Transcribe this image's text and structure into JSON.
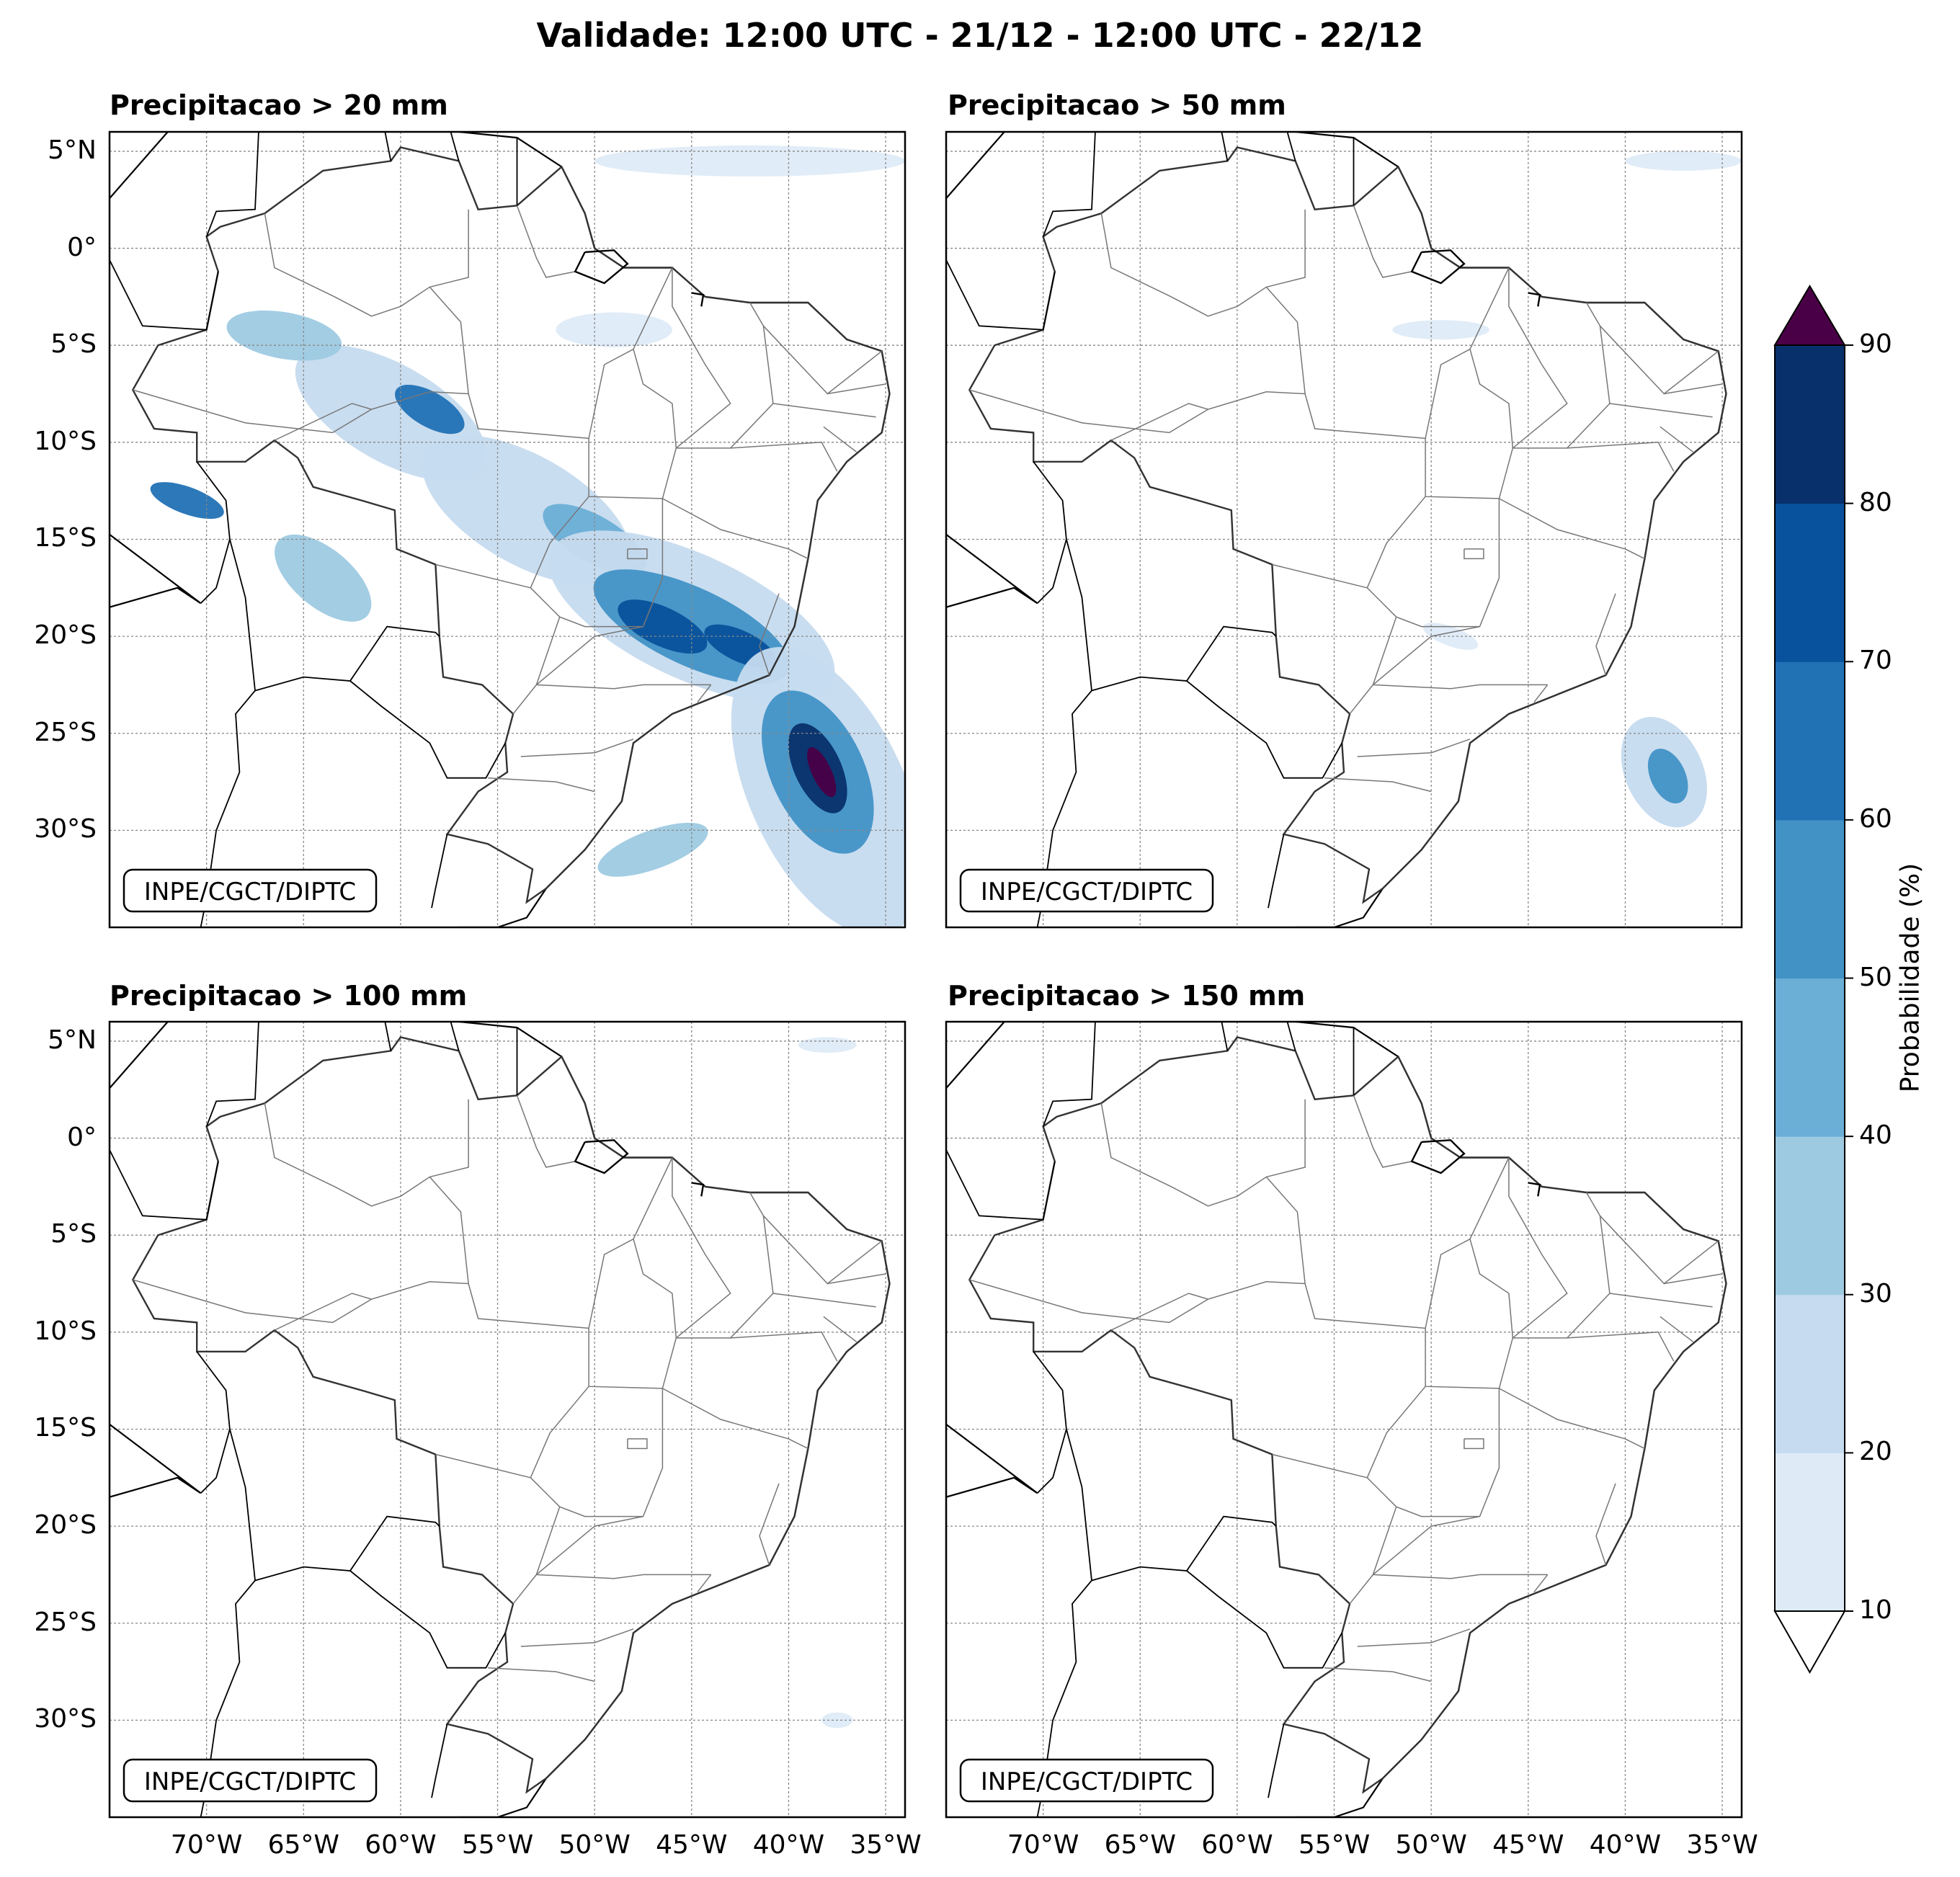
{
  "title": "Validade: 12:00 UTC - 21/12 - 12:00 UTC - 22/12",
  "credit": "INPE/CGCT/DIPTC",
  "panels": [
    {
      "title": "Precipitacao > 20 mm"
    },
    {
      "title": "Precipitacao > 50 mm"
    },
    {
      "title": "Precipitacao > 100 mm"
    },
    {
      "title": "Precipitacao > 150 mm"
    }
  ],
  "axes": {
    "lat_ticks": [
      "5°N",
      "0°",
      "5°S",
      "10°S",
      "15°S",
      "20°S",
      "25°S",
      "30°S"
    ],
    "lon_ticks": [
      "70°W",
      "65°W",
      "60°W",
      "55°W",
      "50°W",
      "45°W",
      "40°W",
      "35°W"
    ],
    "lat_range": [
      -35,
      6
    ],
    "lon_range": [
      -75,
      -34
    ]
  },
  "colorbar": {
    "label": "Probabilidade (%)",
    "ticks": [
      "10",
      "20",
      "30",
      "40",
      "50",
      "60",
      "70",
      "80",
      "90"
    ],
    "colors": [
      "#deebf7",
      "#c6dbef",
      "#9ecae1",
      "#6baed6",
      "#4292c6",
      "#2171b5",
      "#08519c",
      "#08306b"
    ],
    "over_color": "#4a0046",
    "under_color": "#ffffff"
  },
  "chart_data": {
    "type": "heatmap",
    "units": "%",
    "levels": [
      10,
      20,
      30,
      40,
      50,
      60,
      70,
      80,
      90
    ],
    "fields": [
      {
        "threshold_mm": 20,
        "regions": [
          {
            "lon": -60.5,
            "lat": -8.5,
            "rx": 5.5,
            "ry": 2.5,
            "angle": 30,
            "value": 20
          },
          {
            "lon": -58.5,
            "lat": -8.3,
            "rx": 2.0,
            "ry": 0.9,
            "angle": 30,
            "value": 60
          },
          {
            "lon": -53.5,
            "lat": -13.5,
            "rx": 6.0,
            "ry": 2.8,
            "angle": 30,
            "value": 20
          },
          {
            "lon": -50.0,
            "lat": -15.0,
            "rx": 3.0,
            "ry": 1.2,
            "angle": 30,
            "value": 40
          },
          {
            "lon": -45.0,
            "lat": -19.0,
            "rx": 8.0,
            "ry": 3.2,
            "angle": 25,
            "value": 20
          },
          {
            "lon": -45.0,
            "lat": -19.5,
            "rx": 5.5,
            "ry": 2.0,
            "angle": 25,
            "value": 50
          },
          {
            "lon": -46.5,
            "lat": -19.5,
            "rx": 2.5,
            "ry": 1.0,
            "angle": 25,
            "value": 70
          },
          {
            "lon": -42.5,
            "lat": -20.5,
            "rx": 2.0,
            "ry": 0.8,
            "angle": 25,
            "value": 70
          },
          {
            "lon": -71.0,
            "lat": -13.0,
            "rx": 2.0,
            "ry": 0.7,
            "angle": 20,
            "value": 60
          },
          {
            "lon": -64.0,
            "lat": -17.0,
            "rx": 3.0,
            "ry": 1.5,
            "angle": 40,
            "value": 30
          },
          {
            "lon": -66.0,
            "lat": -4.5,
            "rx": 3.0,
            "ry": 1.2,
            "angle": 10,
            "value": 30
          },
          {
            "lon": -49.0,
            "lat": -4.2,
            "rx": 3.0,
            "ry": 0.9,
            "angle": 0,
            "value": 10
          },
          {
            "lon": -42.0,
            "lat": 4.5,
            "rx": 8.0,
            "ry": 0.8,
            "angle": 0,
            "value": 10
          },
          {
            "lon": -38.0,
            "lat": -28.0,
            "rx": 4.0,
            "ry": 8.0,
            "angle": -25,
            "value": 20
          },
          {
            "lon": -38.5,
            "lat": -27.0,
            "rx": 2.4,
            "ry": 4.5,
            "angle": -25,
            "value": 50
          },
          {
            "lon": -38.5,
            "lat": -26.8,
            "rx": 1.2,
            "ry": 2.5,
            "angle": -25,
            "value": 80
          },
          {
            "lon": -38.3,
            "lat": -27.0,
            "rx": 0.5,
            "ry": 1.4,
            "angle": -25,
            "value": 90
          },
          {
            "lon": -47.0,
            "lat": -31.0,
            "rx": 3.0,
            "ry": 1.0,
            "angle": -20,
            "value": 30
          }
        ]
      },
      {
        "threshold_mm": 50,
        "regions": [
          {
            "lon": -38.0,
            "lat": -27.0,
            "rx": 2.0,
            "ry": 3.0,
            "angle": -25,
            "value": 20
          },
          {
            "lon": -37.8,
            "lat": -27.2,
            "rx": 0.9,
            "ry": 1.5,
            "angle": -25,
            "value": 50
          },
          {
            "lon": -49.5,
            "lat": -4.2,
            "rx": 2.5,
            "ry": 0.5,
            "angle": 0,
            "value": 10
          },
          {
            "lon": -37.0,
            "lat": 4.5,
            "rx": 3.0,
            "ry": 0.5,
            "angle": 0,
            "value": 10
          },
          {
            "lon": -49.0,
            "lat": -20.0,
            "rx": 1.5,
            "ry": 0.5,
            "angle": 20,
            "value": 10
          }
        ]
      },
      {
        "threshold_mm": 100,
        "regions": [
          {
            "lon": -38.0,
            "lat": 4.8,
            "rx": 1.5,
            "ry": 0.4,
            "angle": 0,
            "value": 10
          },
          {
            "lon": -37.5,
            "lat": -30.0,
            "rx": 0.8,
            "ry": 0.4,
            "angle": 0,
            "value": 10
          }
        ]
      },
      {
        "threshold_mm": 150,
        "regions": []
      }
    ]
  }
}
